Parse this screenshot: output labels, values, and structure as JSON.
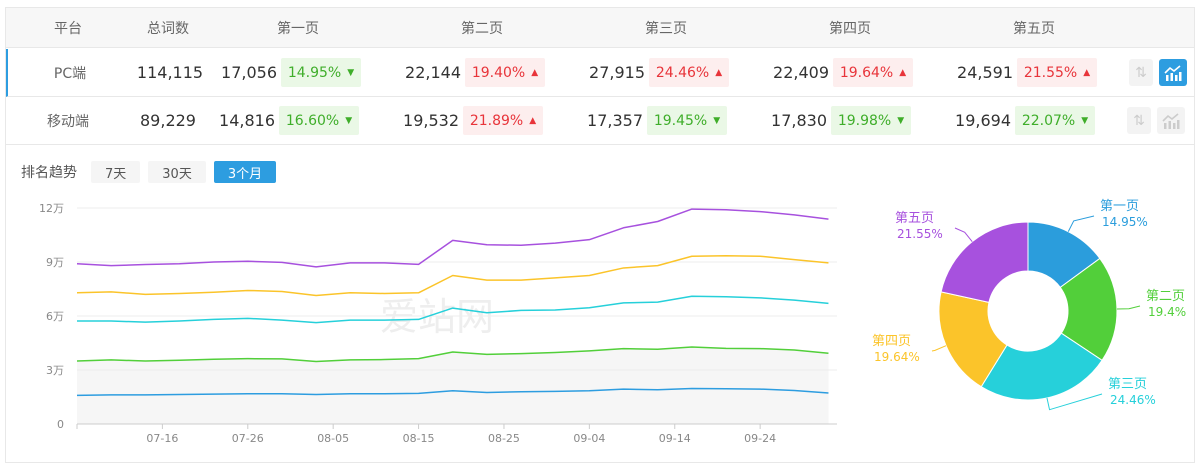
{
  "table": {
    "headers": [
      "平台",
      "总词数",
      "第一页",
      "第二页",
      "第三页",
      "第四页",
      "第五页"
    ],
    "rows": [
      {
        "platform": "PC端",
        "total": "114,115",
        "selected": true,
        "pages": [
          {
            "count": "17,056",
            "pct": "14.95%",
            "dir": "down"
          },
          {
            "count": "22,144",
            "pct": "19.40%",
            "dir": "up"
          },
          {
            "count": "27,915",
            "pct": "24.46%",
            "dir": "up"
          },
          {
            "count": "22,409",
            "pct": "19.64%",
            "dir": "up"
          },
          {
            "count": "24,591",
            "pct": "21.55%",
            "dir": "up"
          }
        ]
      },
      {
        "platform": "移动端",
        "total": "89,229",
        "selected": false,
        "pages": [
          {
            "count": "14,816",
            "pct": "16.60%",
            "dir": "down"
          },
          {
            "count": "19,532",
            "pct": "21.89%",
            "dir": "up"
          },
          {
            "count": "17,357",
            "pct": "19.45%",
            "dir": "down"
          },
          {
            "count": "17,830",
            "pct": "19.98%",
            "dir": "down"
          },
          {
            "count": "19,694",
            "pct": "22.07%",
            "dir": "down"
          }
        ]
      }
    ],
    "icons": {
      "sort": "sort-arrows-icon",
      "chart": "trend-chart-icon"
    }
  },
  "trend": {
    "title": "排名趋势",
    "ranges": [
      "7天",
      "30天",
      "3个月"
    ],
    "active": "3个月"
  },
  "colors": {
    "accent": "#2d9de0",
    "up": "#e8343a",
    "down": "#3fae2a"
  },
  "watermark": "爱站网",
  "chart_data": [
    {
      "type": "line",
      "x": [
        "07-06",
        "07-10",
        "07-14",
        "07-18",
        "07-22",
        "07-26",
        "07-30",
        "08-03",
        "08-07",
        "08-11",
        "08-15",
        "08-19",
        "08-23",
        "08-27",
        "08-31",
        "09-04",
        "09-08",
        "09-12",
        "09-16",
        "09-20",
        "09-24",
        "09-28",
        "10-02"
      ],
      "xticks": [
        "07-16",
        "07-26",
        "08-05",
        "08-15",
        "08-25",
        "09-04",
        "09-14",
        "09-24"
      ],
      "yticks": [
        "0",
        "3万",
        "6万",
        "9万",
        "12万"
      ],
      "ylim": [
        0,
        120000
      ],
      "grid": true,
      "series": [
        {
          "color": "#2d9de0",
          "values": [
            15900,
            16200,
            16200,
            16400,
            16600,
            16800,
            16800,
            16400,
            16800,
            16800,
            17000,
            18500,
            17500,
            17900,
            18100,
            18500,
            19400,
            19000,
            19700,
            19600,
            19400,
            18600,
            17200
          ]
        },
        {
          "color": "#52cf3a",
          "values": [
            35000,
            35600,
            35000,
            35400,
            36000,
            36300,
            36200,
            34700,
            35600,
            35800,
            36300,
            40000,
            38700,
            39100,
            39700,
            40600,
            41900,
            41500,
            42800,
            42000,
            41900,
            41100,
            39300
          ]
        },
        {
          "color": "#26d0da",
          "values": [
            57200,
            57200,
            56600,
            57200,
            58100,
            58700,
            57700,
            56300,
            57700,
            57700,
            58100,
            64400,
            61800,
            63100,
            63300,
            64600,
            67300,
            67700,
            71000,
            70700,
            70100,
            68800,
            67000
          ]
        },
        {
          "color": "#fbc42a",
          "values": [
            72900,
            73400,
            72000,
            72500,
            73200,
            74200,
            73600,
            71400,
            72900,
            72500,
            72900,
            82500,
            79900,
            79900,
            81200,
            82500,
            86700,
            88000,
            93200,
            93500,
            93200,
            91300,
            89500
          ]
        },
        {
          "color": "#a751de",
          "values": [
            89000,
            88000,
            88600,
            89000,
            90000,
            90400,
            89800,
            87300,
            89500,
            89500,
            88700,
            102000,
            99600,
            99300,
            100500,
            102400,
            109000,
            112500,
            119400,
            119000,
            118000,
            116200,
            113800
          ]
        }
      ]
    },
    {
      "type": "pie",
      "donut": true,
      "slices": [
        {
          "label": "第一页",
          "value": 14.95,
          "text": "14.95%",
          "color": "#2b9ddc"
        },
        {
          "label": "第二页",
          "value": 19.4,
          "text": "19.4%",
          "color": "#52cf3a"
        },
        {
          "label": "第三页",
          "value": 24.46,
          "text": "24.46%",
          "color": "#26d0da"
        },
        {
          "label": "第四页",
          "value": 19.64,
          "text": "19.64%",
          "color": "#fbc42a"
        },
        {
          "label": "第五页",
          "value": 21.55,
          "text": "21.55%",
          "color": "#a751de"
        }
      ]
    }
  ]
}
